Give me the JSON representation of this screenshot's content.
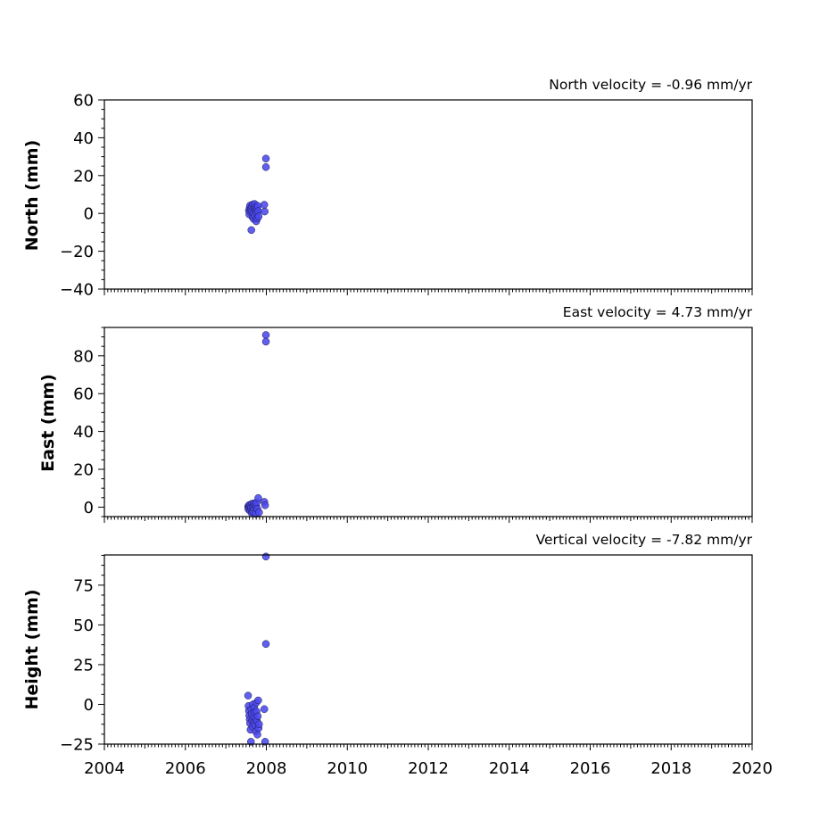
{
  "chart_data": [
    {
      "type": "scatter",
      "title": "North velocity = -0.96 mm/yr",
      "ylabel": "North (mm)",
      "xlim": [
        2004,
        2020
      ],
      "ylim": [
        -40,
        60
      ],
      "yticks": [
        -40,
        -20,
        0,
        20,
        40,
        60
      ],
      "yticklabels": [
        "−40",
        "−20",
        "0",
        "20",
        "40",
        "60"
      ],
      "x_tick_labels_shown": false,
      "series": [
        {
          "color": "#4b48f0",
          "points": [
            [
              2007.57,
              1.5
            ],
            [
              2007.58,
              -0.5
            ],
            [
              2007.59,
              3.0
            ],
            [
              2007.6,
              4.2
            ],
            [
              2007.61,
              0.8
            ],
            [
              2007.62,
              2.2
            ],
            [
              2007.63,
              -8.8
            ],
            [
              2007.64,
              3.6
            ],
            [
              2007.65,
              1.0
            ],
            [
              2007.66,
              -2.0
            ],
            [
              2007.67,
              4.8
            ],
            [
              2007.68,
              0.2
            ],
            [
              2007.69,
              -3.0
            ],
            [
              2007.7,
              2.6
            ],
            [
              2007.71,
              5.0
            ],
            [
              2007.72,
              -1.2
            ],
            [
              2007.73,
              1.8
            ],
            [
              2007.74,
              3.4
            ],
            [
              2007.75,
              -4.2
            ],
            [
              2007.76,
              0.6
            ],
            [
              2007.77,
              2.8
            ],
            [
              2007.78,
              -2.6
            ],
            [
              2007.79,
              4.0
            ],
            [
              2007.8,
              1.2
            ],
            [
              2007.81,
              -1.6
            ],
            [
              2007.95,
              4.6
            ],
            [
              2007.96,
              1.0
            ],
            [
              2007.99,
              29.0
            ],
            [
              2007.99,
              24.5
            ]
          ]
        }
      ]
    },
    {
      "type": "scatter",
      "title": "East velocity = 4.73 mm/yr",
      "ylabel": "East (mm)",
      "xlim": [
        2004,
        2020
      ],
      "ylim": [
        -5,
        95
      ],
      "yticks": [
        0,
        20,
        40,
        60,
        80
      ],
      "yticklabels": [
        "0",
        "20",
        "40",
        "60",
        "80"
      ],
      "x_tick_labels_shown": false,
      "series": [
        {
          "color": "#4b48f0",
          "points": [
            [
              2007.55,
              0.2
            ],
            [
              2007.56,
              -1.2
            ],
            [
              2007.57,
              1.0
            ],
            [
              2007.58,
              -0.4
            ],
            [
              2007.59,
              0.6
            ],
            [
              2007.6,
              -2.0
            ],
            [
              2007.61,
              1.4
            ],
            [
              2007.62,
              -0.8
            ],
            [
              2007.63,
              0.0
            ],
            [
              2007.64,
              -3.2
            ],
            [
              2007.65,
              1.8
            ],
            [
              2007.66,
              -1.6
            ],
            [
              2007.67,
              0.4
            ],
            [
              2007.68,
              -2.6
            ],
            [
              2007.69,
              2.0
            ],
            [
              2007.7,
              -0.2
            ],
            [
              2007.72,
              1.2
            ],
            [
              2007.74,
              -3.6
            ],
            [
              2007.75,
              0.8
            ],
            [
              2007.76,
              2.4
            ],
            [
              2007.78,
              -1.0
            ],
            [
              2007.8,
              4.8
            ],
            [
              2007.82,
              -2.8
            ],
            [
              2007.95,
              2.8
            ],
            [
              2007.97,
              1.0
            ],
            [
              2007.99,
              91.0
            ],
            [
              2007.99,
              87.5
            ]
          ]
        }
      ]
    },
    {
      "type": "scatter",
      "title": "Vertical velocity = -7.82 mm/yr",
      "ylabel": "Height (mm)",
      "xlim": [
        2004,
        2020
      ],
      "ylim": [
        -25,
        94
      ],
      "yticks": [
        -25,
        0,
        25,
        50,
        75
      ],
      "yticklabels": [
        "−25",
        "0",
        "25",
        "50",
        "75"
      ],
      "xticks": [
        2004,
        2006,
        2008,
        2010,
        2012,
        2014,
        2016,
        2018,
        2020
      ],
      "xticklabels": [
        "2004",
        "2006",
        "2008",
        "2010",
        "2012",
        "2014",
        "2016",
        "2018",
        "2020"
      ],
      "series": [
        {
          "color": "#4b48f0",
          "points": [
            [
              2007.55,
              5.5
            ],
            [
              2007.56,
              -1.0
            ],
            [
              2007.57,
              -4.0
            ],
            [
              2007.58,
              -7.0
            ],
            [
              2007.59,
              -9.5
            ],
            [
              2007.6,
              -12.0
            ],
            [
              2007.61,
              -16.0
            ],
            [
              2007.62,
              -23.5
            ],
            [
              2007.63,
              -3.0
            ],
            [
              2007.64,
              -6.0
            ],
            [
              2007.65,
              -10.0
            ],
            [
              2007.66,
              -14.0
            ],
            [
              2007.67,
              0.0
            ],
            [
              2007.68,
              -8.0
            ],
            [
              2007.69,
              -11.5
            ],
            [
              2007.7,
              -2.0
            ],
            [
              2007.71,
              -5.0
            ],
            [
              2007.72,
              -13.0
            ],
            [
              2007.73,
              -9.0
            ],
            [
              2007.74,
              -17.0
            ],
            [
              2007.75,
              1.0
            ],
            [
              2007.76,
              -4.5
            ],
            [
              2007.77,
              -10.5
            ],
            [
              2007.78,
              -19.0
            ],
            [
              2007.79,
              -7.5
            ],
            [
              2007.8,
              2.5
            ],
            [
              2007.81,
              -15.0
            ],
            [
              2007.82,
              -12.5
            ],
            [
              2007.95,
              -3.0
            ],
            [
              2007.97,
              -23.5
            ],
            [
              2007.99,
              38.0
            ],
            [
              2007.99,
              93.0
            ]
          ]
        }
      ]
    }
  ]
}
